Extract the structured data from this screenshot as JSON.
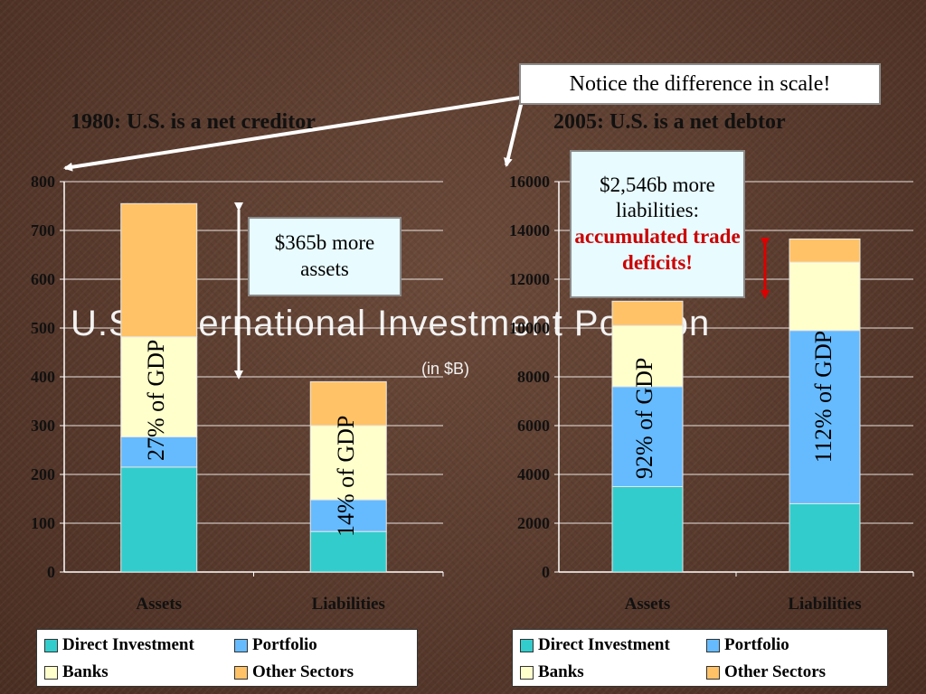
{
  "slide": {
    "title": "U.S. International Investment Position",
    "subtitle": "(in $B)",
    "note": "Notice the difference in scale!"
  },
  "colors": {
    "direct": "#33cccc",
    "portfolio": "#66bbff",
    "banks": "#ffffcc",
    "other": "#ffc266"
  },
  "left": {
    "heading": "1980: U.S. is a net creditor",
    "callout": "$365b more assets",
    "gdp_assets": "27% of GDP",
    "gdp_liabilities": "14% of GDP"
  },
  "right": {
    "heading": "2005: U.S. is a net debtor",
    "callout_line1": "$2,546b more liabilities:",
    "callout_line2": "accumulated trade deficits!",
    "gdp_assets": "92% of GDP",
    "gdp_liabilities": "112% of GDP"
  },
  "legend": {
    "direct": "Direct Investment",
    "portfolio": "Portfolio",
    "banks": "Banks",
    "other": "Other Sectors"
  },
  "chart_data": [
    {
      "type": "bar",
      "stacked": true,
      "title": "1980: U.S. is a net creditor",
      "categories": [
        "Assets",
        "Liabilities"
      ],
      "series": [
        {
          "name": "Direct Investment",
          "values": [
            215,
            83
          ]
        },
        {
          "name": "Portfolio",
          "values": [
            62,
            65
          ]
        },
        {
          "name": "Banks",
          "values": [
            205,
            152
          ]
        },
        {
          "name": "Other Sectors",
          "values": [
            273,
            90
          ]
        }
      ],
      "ylim": [
        0,
        800
      ],
      "yticks": [
        0,
        100,
        200,
        300,
        400,
        500,
        600,
        700,
        800
      ],
      "legend": "bottom"
    },
    {
      "type": "bar",
      "stacked": true,
      "title": "2005: U.S. is a net debtor",
      "categories": [
        "Assets",
        "Liabilities"
      ],
      "series": [
        {
          "name": "Direct Investment",
          "values": [
            3500,
            2800
          ]
        },
        {
          "name": "Portfolio",
          "values": [
            4100,
            7100
          ]
        },
        {
          "name": "Banks",
          "values": [
            2500,
            2800
          ]
        },
        {
          "name": "Other Sectors",
          "values": [
            1000,
            950
          ]
        }
      ],
      "ylim": [
        0,
        16000
      ],
      "yticks": [
        0,
        2000,
        4000,
        6000,
        8000,
        10000,
        12000,
        14000,
        16000
      ],
      "legend": "bottom"
    }
  ]
}
